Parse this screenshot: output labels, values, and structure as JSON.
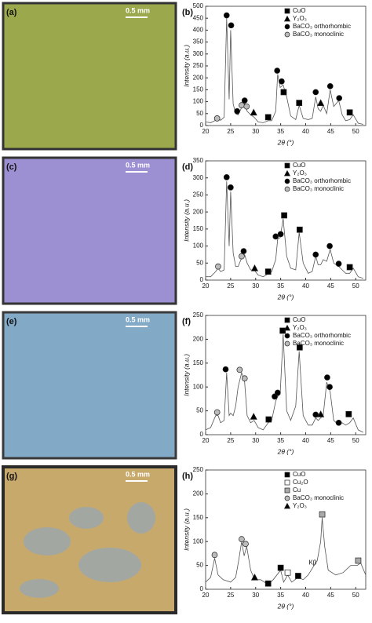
{
  "images": [
    {
      "label": "(a)",
      "scale_bar": "0.5 mm"
    },
    {
      "label": "(c)",
      "scale_bar": "0.5 mm"
    },
    {
      "label": "(e)",
      "scale_bar": "0.5 mm"
    },
    {
      "label": "(g)",
      "scale_bar": "0.5 mm"
    }
  ],
  "chart_data": [
    {
      "type": "line",
      "panel_label": "(b)",
      "x_label": "2θ (°)",
      "y_label": "Intensity (a.u.)",
      "xlim": [
        20,
        52
      ],
      "xticks": [
        20,
        25,
        30,
        35,
        40,
        45,
        50
      ],
      "ylim": [
        0,
        500
      ],
      "yticks": [
        0,
        50,
        100,
        150,
        200,
        250,
        300,
        350,
        400,
        450,
        500
      ],
      "x": [
        20,
        21,
        22,
        22.5,
        23,
        23.7,
        24.2,
        24.7,
        25,
        25.5,
        26,
        26.5,
        27.2,
        27.8,
        28.3,
        29,
        29.7,
        30.5,
        31.5,
        32.5,
        33.2,
        34,
        34.4,
        34.9,
        35.5,
        36.2,
        37,
        38,
        38.7,
        39.5,
        40.5,
        41.3,
        42,
        42.5,
        43,
        43.5,
        44.2,
        44.9,
        45.6,
        46.6,
        47.3,
        48,
        48.8,
        49.5,
        50.5,
        51.5
      ],
      "values": [
        15,
        12,
        22,
        30,
        22,
        35,
        450,
        110,
        400,
        90,
        50,
        45,
        75,
        95,
        60,
        45,
        35,
        15,
        12,
        20,
        20,
        60,
        215,
        160,
        170,
        120,
        40,
        25,
        85,
        30,
        25,
        30,
        120,
        70,
        60,
        85,
        50,
        150,
        80,
        105,
        45,
        20,
        25,
        45,
        10,
        5
      ],
      "series": [
        {
          "name": "CuO",
          "marker": "square",
          "color": "#000000",
          "x": [
            32.5,
            35.6,
            38.7,
            48.8
          ],
          "values": [
            35,
            140,
            95,
            55
          ]
        },
        {
          "name": "Y₂O₃",
          "marker": "triangle",
          "color": "#000000",
          "x": [
            29.6,
            43
          ],
          "values": [
            55,
            95
          ]
        },
        {
          "name": "BaCO₃ orthorhombic",
          "marker": "circle",
          "color": "#000000",
          "x": [
            24.2,
            25.1,
            26.3,
            27.8,
            34.3,
            35.2,
            42,
            44.9,
            46.7
          ],
          "values": [
            462,
            420,
            60,
            105,
            230,
            185,
            140,
            165,
            115
          ]
        },
        {
          "name": "BaCO₃ monoclinic",
          "marker": "circle",
          "color": "#bbbbbb",
          "x": [
            22.3,
            27.2,
            28.2
          ],
          "values": [
            30,
            85,
            80
          ]
        }
      ]
    },
    {
      "type": "line",
      "panel_label": "(d)",
      "x_label": "2θ (°)",
      "y_label": "Intensity (a.u.)",
      "xlim": [
        20,
        52
      ],
      "xticks": [
        20,
        25,
        30,
        35,
        40,
        45,
        50
      ],
      "ylim": [
        0,
        350
      ],
      "yticks": [
        0,
        50,
        100,
        150,
        200,
        250,
        300,
        350
      ],
      "x": [
        20,
        21,
        22,
        22.5,
        23,
        23.7,
        24.2,
        24.7,
        25,
        25.5,
        26,
        26.5,
        27.2,
        27.8,
        28.3,
        29,
        29.7,
        30.5,
        31.5,
        32.5,
        33.2,
        34,
        34.4,
        34.9,
        35.5,
        36.2,
        37,
        38,
        38.7,
        39.5,
        40.5,
        41.3,
        42,
        42.5,
        43,
        43.5,
        44.2,
        44.9,
        45.6,
        46.6,
        47.3,
        48,
        48.8,
        49.5,
        50.5,
        51.5
      ],
      "values": [
        10,
        10,
        25,
        35,
        25,
        30,
        290,
        100,
        260,
        80,
        40,
        40,
        65,
        75,
        50,
        30,
        30,
        15,
        10,
        18,
        25,
        60,
        120,
        125,
        180,
        70,
        35,
        30,
        140,
        50,
        20,
        25,
        70,
        45,
        45,
        60,
        55,
        90,
        50,
        40,
        30,
        20,
        20,
        35,
        10,
        5
      ],
      "series": [
        {
          "name": "CuO",
          "marker": "square",
          "color": "#000000",
          "x": [
            32.5,
            35.7,
            38.8,
            48.8
          ],
          "values": [
            25,
            190,
            148,
            38
          ]
        },
        {
          "name": "Y₂O₃",
          "marker": "triangle",
          "color": "#000000",
          "x": [
            29.8
          ],
          "values": [
            35
          ]
        },
        {
          "name": "BaCO₃ orthorhombic",
          "marker": "circle",
          "color": "#000000",
          "x": [
            24.2,
            25,
            27.6,
            34,
            35,
            42,
            44.8,
            46.6
          ],
          "values": [
            302,
            272,
            85,
            128,
            135,
            75,
            100,
            48
          ]
        },
        {
          "name": "BaCO₃ monoclinic",
          "marker": "circle",
          "color": "#bbbbbb",
          "x": [
            22.5,
            27.2
          ],
          "values": [
            40,
            70
          ]
        }
      ]
    },
    {
      "type": "line",
      "panel_label": "(f)",
      "x_label": "2θ (°)",
      "y_label": "Intensity (a.u.)",
      "xlim": [
        20,
        52
      ],
      "xticks": [
        20,
        25,
        30,
        35,
        40,
        45,
        50
      ],
      "ylim": [
        0,
        250
      ],
      "yticks": [
        0,
        50,
        100,
        150,
        200,
        250
      ],
      "x": [
        20,
        21,
        22,
        22.5,
        23,
        23.7,
        24.2,
        24.7,
        25,
        25.5,
        26,
        26.5,
        27.2,
        27.8,
        28.3,
        29,
        29.7,
        30.5,
        31.5,
        32.5,
        33.2,
        34,
        34.4,
        34.9,
        35.5,
        36.2,
        37,
        38,
        38.7,
        39.5,
        40.5,
        41.3,
        42,
        42.5,
        43,
        43.5,
        44.2,
        44.9,
        45.6,
        46.6,
        47.3,
        48,
        48.8,
        49.5,
        50.5,
        51.5
      ],
      "values": [
        10,
        15,
        40,
        40,
        25,
        30,
        130,
        40,
        45,
        40,
        60,
        100,
        130,
        110,
        40,
        25,
        30,
        15,
        10,
        25,
        30,
        70,
        80,
        85,
        210,
        50,
        30,
        60,
        175,
        40,
        20,
        20,
        35,
        30,
        35,
        40,
        110,
        90,
        30,
        20,
        25,
        20,
        25,
        35,
        10,
        5
      ],
      "series": [
        {
          "name": "CuO",
          "marker": "square",
          "color": "#000000",
          "x": [
            32.6,
            35.4,
            38.8,
            48.6
          ],
          "values": [
            32,
            218,
            183,
            43
          ]
        },
        {
          "name": "Y₂O₃",
          "marker": "triangle",
          "color": "#000000",
          "x": [
            29.6,
            43
          ],
          "values": [
            38,
            43
          ]
        },
        {
          "name": "BaCO₃ orthorhombic",
          "marker": "circle",
          "color": "#000000",
          "x": [
            24,
            33.8,
            34.4,
            42,
            44.3,
            44.8,
            46.6
          ],
          "values": [
            137,
            80,
            88,
            42,
            120,
            100,
            25
          ]
        },
        {
          "name": "BaCO₃ monoclinic",
          "marker": "circle",
          "color": "#bbbbbb",
          "x": [
            22.3,
            26.8,
            27.8
          ],
          "values": [
            47,
            136,
            118
          ]
        }
      ]
    },
    {
      "type": "line",
      "panel_label": "(h)",
      "x_label": "2θ (°)",
      "y_label": "Intensity (a.u.)",
      "xlim": [
        20,
        52
      ],
      "xticks": [
        20,
        25,
        30,
        35,
        40,
        45,
        50
      ],
      "ylim": [
        0,
        250
      ],
      "yticks": [
        0,
        50,
        100,
        150,
        200,
        250
      ],
      "x": [
        20,
        21,
        21.8,
        22.5,
        23.5,
        25,
        26,
        26.6,
        27.2,
        27.7,
        28.2,
        29,
        29.8,
        31,
        32.5,
        33.5,
        35,
        35.6,
        36.4,
        37.2,
        38.5,
        39.5,
        40.5,
        41.4,
        42.3,
        43,
        43.3,
        43.8,
        44.5,
        46,
        47.5,
        49,
        50.3,
        51,
        52
      ],
      "values": [
        15,
        25,
        65,
        30,
        20,
        15,
        25,
        60,
        100,
        70,
        90,
        40,
        20,
        20,
        10,
        20,
        40,
        15,
        30,
        15,
        25,
        20,
        30,
        45,
        60,
        100,
        150,
        90,
        40,
        30,
        35,
        50,
        50,
        55,
        30
      ],
      "series": [
        {
          "name": "CuO",
          "marker": "square",
          "color": "#000000",
          "x": [
            32.5,
            35,
            38.5
          ],
          "values": [
            12,
            45,
            28
          ]
        },
        {
          "name": "Cu₂O",
          "marker": "square",
          "color": "#ffffff",
          "x": [
            36.4
          ],
          "values": [
            35
          ]
        },
        {
          "name": "Cu",
          "marker": "square",
          "color": "#aaaaaa",
          "x": [
            43.3,
            50.5
          ],
          "values": [
            157,
            60
          ]
        },
        {
          "name": "BaCO₃ monoclinic",
          "marker": "circle",
          "color": "#bbbbbb",
          "x": [
            21.8,
            27.2,
            28
          ],
          "values": [
            72,
            105,
            95
          ]
        },
        {
          "name": "Y₂O₃",
          "marker": "triangle",
          "color": "#000000",
          "x": [
            29.8
          ],
          "values": [
            25
          ]
        }
      ],
      "annotations": [
        {
          "text": "Kβ",
          "x": 41.4,
          "y": 45
        }
      ]
    }
  ]
}
